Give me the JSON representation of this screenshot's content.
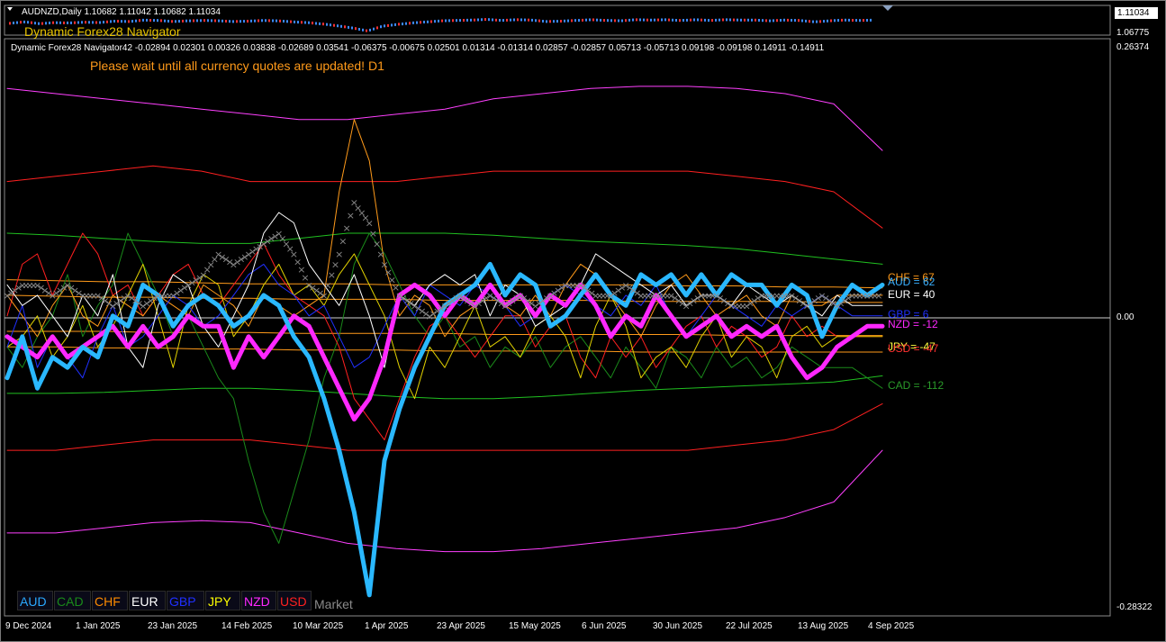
{
  "window": {
    "title": "AUDNZD,Daily  1.10682 1.11042 1.10682 1.11034"
  },
  "price_scale": {
    "current": "1.11034",
    "low": "1.06775"
  },
  "indicator": {
    "name": "Dynamic Forex28 Navigator",
    "values_text": "Dynamic Forex28 Navigator42 -0.02894 0.02301 0.00326 0.03838 -0.02689 0.03541 -0.06375 -0.00675 0.02501 0.01314 -0.01314 0.02857 -0.02857 0.05713 -0.05713 0.09198 -0.09198 0.14911 -0.14911",
    "message": "Please wait until all currency quotes are updated! D1",
    "y_labels": {
      "top": "0.26374",
      "zero": "0.00",
      "bottom": "-0.28322"
    }
  },
  "currency_buttons": [
    {
      "label": "AUD",
      "color": "#2aa8ff"
    },
    {
      "label": "CAD",
      "color": "#1a8a1a"
    },
    {
      "label": "CHF",
      "color": "#ff8c00"
    },
    {
      "label": "EUR",
      "color": "#ffffff"
    },
    {
      "label": "GBP",
      "color": "#2030ff"
    },
    {
      "label": "JPY",
      "color": "#ffff00"
    },
    {
      "label": "NZD",
      "color": "#ff28ff"
    },
    {
      "label": "USD",
      "color": "#ff2020"
    }
  ],
  "market_label": "Market",
  "end_labels": [
    {
      "text": "CHF = 67",
      "color": "#ff9a1a"
    },
    {
      "text": "AUD = 62",
      "color": "#3ab0ff"
    },
    {
      "text": "EUR = 40",
      "color": "#ffffff"
    },
    {
      "text": "GBP = 6",
      "color": "#2030ff"
    },
    {
      "text": "NZD = -12",
      "color": "#ff28ff"
    },
    {
      "text": "JPY = -47",
      "color": "#ffff40"
    },
    {
      "text": "USD = -47",
      "color": "#ff3030"
    },
    {
      "text": "CAD = -112",
      "color": "#2a9a2a"
    }
  ],
  "chart_data": {
    "type": "line",
    "x_ticks": [
      "9 Dec 2024",
      "1 Jan 2025",
      "23 Jan 2025",
      "14 Feb 2025",
      "10 Mar 2025",
      "1 Apr 2025",
      "23 Apr 2025",
      "15 May 2025",
      "6 Jun 2025",
      "30 Jun 2025",
      "22 Jul 2025",
      "13 Aug 2025",
      "4 Sep 2025"
    ],
    "ylim": [
      -0.28322,
      0.26374
    ],
    "series": [
      {
        "name": "AUD",
        "color": "#2ab8ff",
        "width": 5,
        "values": [
          -0.06,
          -0.02,
          -0.07,
          -0.04,
          -0.05,
          -0.03,
          -0.04,
          0.0,
          -0.01,
          0.03,
          0.02,
          -0.01,
          0.01,
          0.02,
          0.01,
          -0.01,
          0.0,
          0.02,
          0.01,
          -0.02,
          -0.04,
          -0.08,
          -0.13,
          -0.19,
          -0.27,
          -0.14,
          -0.09,
          -0.05,
          -0.02,
          0.01,
          0.02,
          0.03,
          0.05,
          0.02,
          0.04,
          0.03,
          -0.01,
          0.0,
          0.02,
          0.04,
          0.02,
          0.01,
          0.04,
          0.03,
          0.04,
          0.02,
          0.04,
          0.02,
          0.04,
          0.03,
          0.03,
          0.01,
          0.03,
          0.02,
          -0.02,
          0.01,
          0.03,
          0.02,
          0.03
        ]
      },
      {
        "name": "NZD",
        "color": "#ff28ff",
        "width": 5,
        "values": [
          -0.02,
          -0.03,
          -0.04,
          -0.02,
          -0.04,
          -0.03,
          -0.02,
          -0.01,
          -0.03,
          -0.01,
          -0.03,
          -0.02,
          0.0,
          -0.01,
          -0.01,
          -0.05,
          -0.02,
          -0.04,
          -0.02,
          0.0,
          -0.01,
          -0.04,
          -0.07,
          -0.1,
          -0.08,
          -0.04,
          0.02,
          0.03,
          0.02,
          0.0,
          0.02,
          0.01,
          0.03,
          0.01,
          0.02,
          0.0,
          0.02,
          0.01,
          0.03,
          0.01,
          -0.02,
          0.0,
          -0.01,
          0.02,
          0.0,
          -0.02,
          -0.01,
          0.0,
          -0.02,
          -0.01,
          -0.02,
          -0.01,
          -0.04,
          -0.06,
          -0.05,
          -0.03,
          -0.02,
          -0.01,
          -0.01
        ]
      },
      {
        "name": "EUR",
        "color": "#ffffff",
        "width": 1,
        "values": [
          0.03,
          0.01,
          0.02,
          0.0,
          -0.02,
          0.02,
          0.0,
          0.04,
          -0.03,
          -0.05,
          0.01,
          0.04,
          0.03,
          -0.01,
          -0.03,
          0.0,
          0.03,
          0.08,
          0.1,
          0.09,
          0.05,
          0.03,
          0.01,
          0.04,
          0.0,
          -0.05,
          0.02,
          0.01,
          0.03,
          0.04,
          0.03,
          0.04,
          0.0,
          0.03,
          0.02,
          -0.01,
          0.0,
          0.01,
          0.03,
          0.06,
          0.05,
          0.04,
          0.03,
          0.02,
          0.03,
          0.01,
          0.02,
          0.02,
          0.01,
          0.03,
          0.02,
          0.01,
          0.02,
          0.01,
          0.0,
          0.02,
          0.01,
          0.01,
          0.01
        ]
      },
      {
        "name": "GBP",
        "color": "#2030ff",
        "width": 1,
        "values": [
          -0.03,
          0.01,
          -0.05,
          -0.02,
          -0.04,
          -0.06,
          -0.02,
          0.01,
          -0.03,
          -0.02,
          0.0,
          0.02,
          0.01,
          -0.01,
          0.0,
          0.02,
          0.04,
          0.05,
          0.03,
          0.02,
          0.0,
          0.01,
          -0.02,
          -0.05,
          -0.04,
          -0.01,
          0.02,
          0.0,
          0.03,
          0.02,
          0.01,
          0.03,
          0.02,
          0.01,
          -0.01,
          0.0,
          0.02,
          0.03,
          0.02,
          0.01,
          0.0,
          0.02,
          0.01,
          0.03,
          0.0,
          -0.02,
          0.0,
          0.02,
          0.01,
          0.0,
          -0.01,
          0.01,
          0.0,
          0.01,
          0.02,
          0.01,
          0.0,
          0.0,
          0.0
        ]
      },
      {
        "name": "CHF",
        "color": "#ff9a1a",
        "width": 1,
        "values": [
          0.02,
          0.0,
          -0.02,
          0.01,
          0.03,
          0.0,
          -0.01,
          0.02,
          0.01,
          0.0,
          0.02,
          0.01,
          0.0,
          0.03,
          0.02,
          0.01,
          -0.01,
          0.02,
          0.01,
          0.0,
          0.01,
          0.02,
          0.12,
          0.19,
          0.15,
          0.05,
          0.0,
          0.02,
          0.01,
          -0.02,
          0.0,
          0.01,
          0.03,
          0.01,
          0.0,
          0.02,
          0.0,
          0.03,
          0.05,
          0.04,
          0.02,
          0.0,
          -0.02,
          0.01,
          0.03,
          0.04,
          0.02,
          0.0,
          0.01,
          0.02,
          0.0,
          -0.01,
          0.02,
          0.01,
          0.01,
          0.02,
          0.02,
          0.02,
          0.02
        ]
      },
      {
        "name": "JPY",
        "color": "#e0d000",
        "width": 1,
        "values": [
          -0.03,
          -0.02,
          0.0,
          -0.04,
          -0.02,
          0.01,
          -0.03,
          -0.01,
          0.02,
          0.05,
          0.0,
          -0.05,
          0.01,
          0.04,
          0.03,
          -0.02,
          0.0,
          0.03,
          0.05,
          0.02,
          0.03,
          0.01,
          0.04,
          0.06,
          0.03,
          0.0,
          -0.05,
          -0.08,
          -0.03,
          -0.05,
          -0.02,
          0.01,
          -0.03,
          -0.02,
          -0.04,
          -0.01,
          0.0,
          -0.02,
          -0.06,
          -0.01,
          0.02,
          -0.01,
          -0.06,
          -0.04,
          -0.03,
          -0.05,
          -0.02,
          0.0,
          -0.04,
          -0.02,
          -0.03,
          -0.06,
          -0.02,
          -0.01,
          -0.03,
          -0.02,
          -0.02,
          -0.02,
          -0.02
        ]
      },
      {
        "name": "USD",
        "color": "#ff2020",
        "width": 1,
        "values": [
          0.0,
          0.05,
          0.06,
          0.02,
          0.05,
          0.08,
          0.06,
          0.02,
          0.03,
          0.0,
          0.02,
          0.04,
          0.05,
          0.02,
          0.01,
          0.03,
          0.05,
          0.07,
          0.04,
          0.02,
          0.01,
          0.0,
          -0.03,
          -0.08,
          -0.1,
          -0.12,
          -0.08,
          -0.04,
          -0.01,
          0.0,
          -0.02,
          -0.04,
          -0.02,
          0.0,
          0.0,
          -0.03,
          -0.01,
          0.0,
          -0.04,
          -0.06,
          -0.02,
          -0.04,
          -0.02,
          -0.05,
          -0.03,
          -0.01,
          0.0,
          -0.03,
          -0.01,
          -0.02,
          -0.04,
          -0.03,
          0.0,
          -0.02,
          -0.01,
          -0.02,
          -0.02,
          -0.02,
          -0.02
        ]
      },
      {
        "name": "CAD",
        "color": "#1a8a1a",
        "width": 1,
        "values": [
          -0.03,
          -0.05,
          -0.02,
          0.0,
          0.04,
          -0.02,
          0.01,
          0.03,
          0.08,
          0.05,
          0.02,
          -0.02,
          0.0,
          -0.03,
          -0.06,
          -0.08,
          -0.14,
          -0.19,
          -0.22,
          -0.17,
          -0.12,
          -0.06,
          -0.02,
          0.05,
          0.08,
          0.06,
          0.03,
          0.0,
          -0.02,
          0.0,
          -0.03,
          -0.02,
          -0.05,
          -0.03,
          -0.04,
          -0.02,
          -0.05,
          -0.03,
          -0.02,
          -0.04,
          -0.06,
          -0.03,
          -0.05,
          -0.07,
          -0.03,
          -0.04,
          -0.06,
          -0.03,
          -0.05,
          -0.04,
          -0.06,
          -0.05,
          -0.03,
          -0.04,
          -0.05,
          -0.05,
          -0.05,
          -0.06,
          -0.07
        ]
      },
      {
        "name": "Market",
        "color": "#8a8a8a",
        "width": 3,
        "values": [
          0.02,
          0.03,
          0.03,
          0.02,
          0.03,
          0.02,
          0.02,
          0.01,
          0.02,
          0.01,
          0.02,
          0.02,
          0.03,
          0.04,
          0.06,
          0.05,
          0.06,
          0.07,
          0.08,
          0.06,
          0.03,
          0.02,
          0.06,
          0.11,
          0.09,
          0.05,
          0.02,
          0.01,
          0.0,
          0.01,
          0.02,
          0.01,
          0.02,
          0.01,
          0.02,
          0.01,
          0.02,
          0.03,
          0.03,
          0.02,
          0.02,
          0.03,
          0.02,
          0.02,
          0.02,
          0.01,
          0.02,
          0.02,
          0.01,
          0.01,
          0.02,
          0.02,
          0.02,
          0.01,
          0.02,
          0.01,
          0.02,
          0.02,
          0.02
        ]
      }
    ],
    "bands": [
      {
        "color": "#ff40ff",
        "values": [
          0.22,
          0.215,
          0.21,
          0.205,
          0.2,
          0.195,
          0.19,
          0.19,
          0.195,
          0.2,
          0.21,
          0.215,
          0.22,
          0.222,
          0.222,
          0.22,
          0.215,
          0.205,
          0.16
        ]
      },
      {
        "color": "#ff2020",
        "values": [
          0.13,
          0.135,
          0.14,
          0.145,
          0.14,
          0.13,
          0.13,
          0.13,
          0.13,
          0.135,
          0.14,
          0.14,
          0.14,
          0.14,
          0.14,
          0.135,
          0.13,
          0.12,
          0.085
        ]
      },
      {
        "color": "#20c020",
        "values": [
          0.08,
          0.078,
          0.075,
          0.072,
          0.07,
          0.07,
          0.075,
          0.08,
          0.08,
          0.08,
          0.078,
          0.075,
          0.072,
          0.07,
          0.068,
          0.065,
          0.06,
          0.055,
          0.05
        ]
      },
      {
        "color": "#ff9a1a",
        "values": [
          0.035,
          0.034,
          0.033,
          0.033,
          0.032,
          0.031,
          0.031,
          0.031,
          0.03,
          0.03,
          0.03,
          0.03,
          0.03,
          0.03,
          0.029,
          0.029,
          0.028,
          0.028,
          0.027
        ]
      },
      {
        "color": "#ff9a1a",
        "values": [
          0.02,
          0.019,
          0.018,
          0.018,
          0.017,
          0.017,
          0.016,
          0.016,
          0.016,
          0.015,
          0.015,
          0.015,
          0.015,
          0.014,
          0.014,
          0.014,
          0.014,
          0.013,
          0.013
        ]
      },
      {
        "color": "#ff9a1a",
        "values": [
          -0.015,
          -0.015,
          -0.015,
          -0.016,
          -0.016,
          -0.016,
          -0.017,
          -0.017,
          -0.017,
          -0.017,
          -0.018,
          -0.018,
          -0.018,
          -0.018,
          -0.018,
          -0.019,
          -0.019,
          -0.019,
          -0.019
        ]
      },
      {
        "color": "#ff9a1a",
        "values": [
          -0.03,
          -0.03,
          -0.031,
          -0.031,
          -0.032,
          -0.032,
          -0.033,
          -0.033,
          -0.033,
          -0.034,
          -0.034,
          -0.034,
          -0.034,
          -0.035,
          -0.035,
          -0.035,
          -0.035,
          -0.035,
          -0.035
        ]
      },
      {
        "color": "#20c020",
        "values": [
          -0.075,
          -0.075,
          -0.074,
          -0.072,
          -0.07,
          -0.07,
          -0.072,
          -0.075,
          -0.078,
          -0.08,
          -0.08,
          -0.078,
          -0.075,
          -0.072,
          -0.07,
          -0.068,
          -0.066,
          -0.064,
          -0.058
        ]
      },
      {
        "color": "#ff2020",
        "values": [
          -0.13,
          -0.13,
          -0.125,
          -0.12,
          -0.12,
          -0.12,
          -0.125,
          -0.13,
          -0.13,
          -0.13,
          -0.13,
          -0.13,
          -0.13,
          -0.13,
          -0.13,
          -0.125,
          -0.12,
          -0.11,
          -0.085
        ]
      },
      {
        "color": "#ff40ff",
        "values": [
          -0.21,
          -0.21,
          -0.205,
          -0.2,
          -0.198,
          -0.2,
          -0.21,
          -0.22,
          -0.225,
          -0.228,
          -0.228,
          -0.225,
          -0.22,
          -0.215,
          -0.21,
          -0.205,
          -0.195,
          -0.18,
          -0.13
        ]
      }
    ]
  }
}
